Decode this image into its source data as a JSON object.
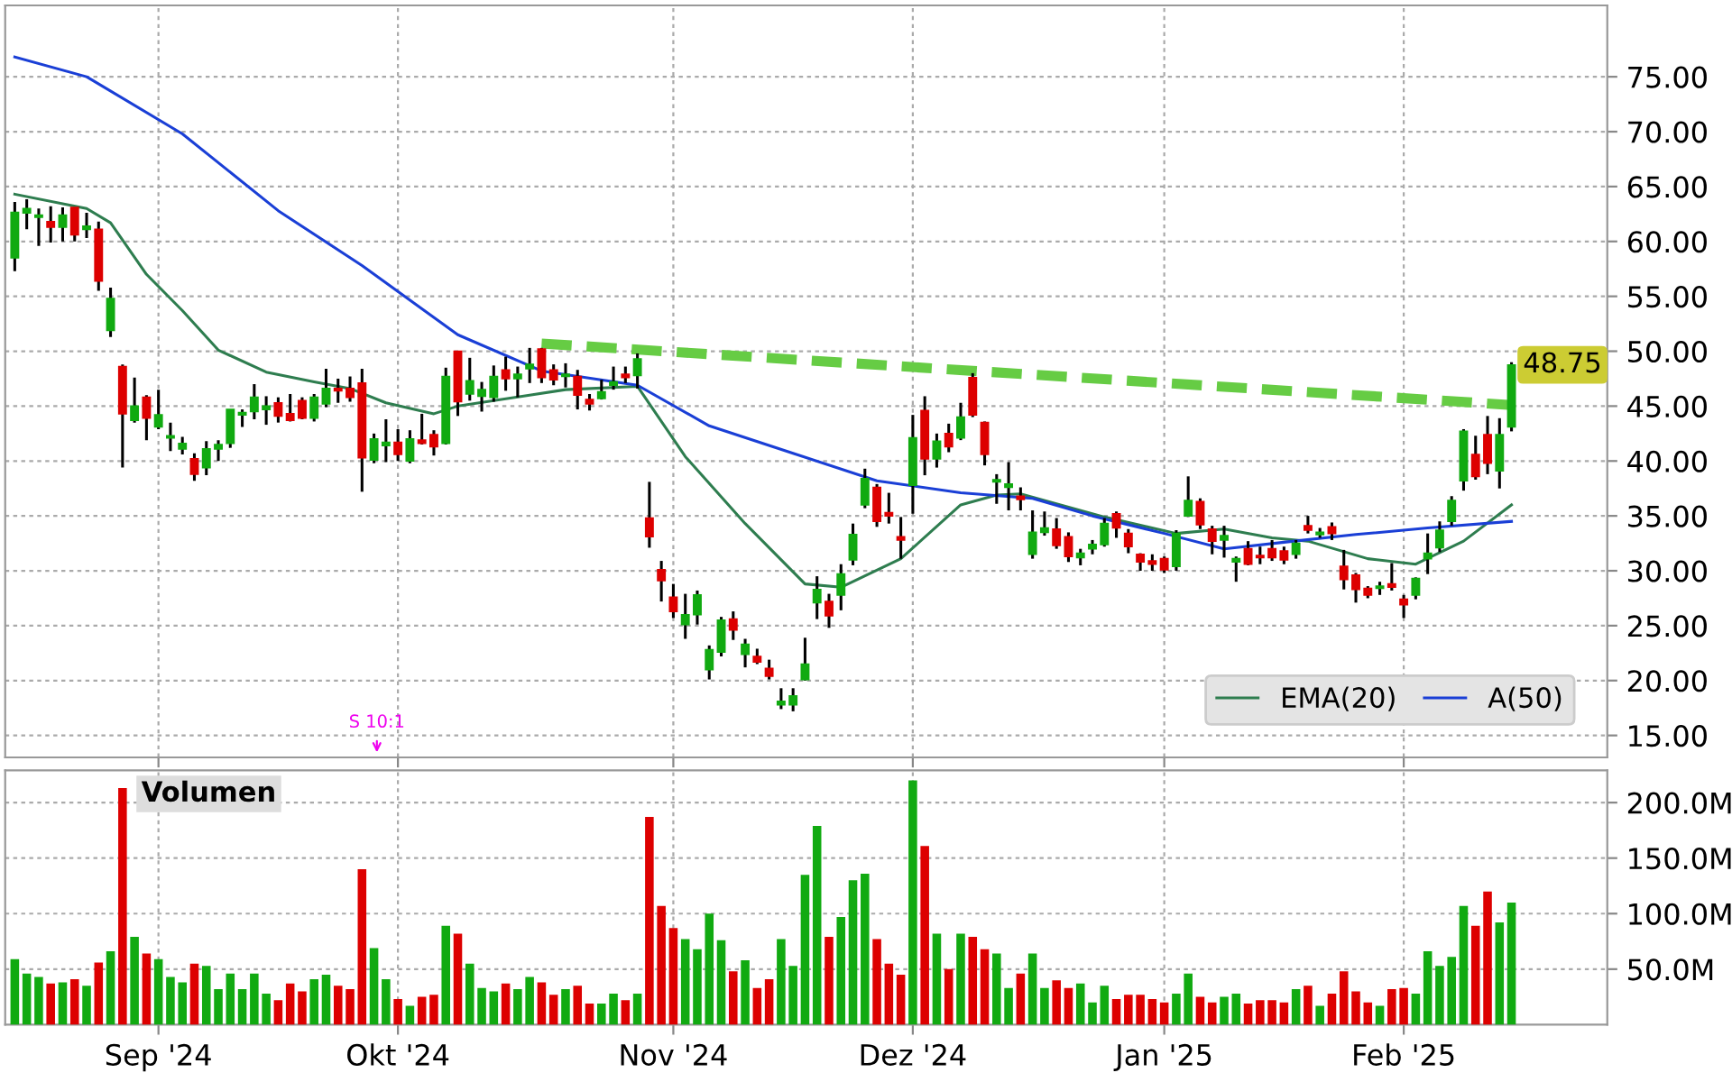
{
  "chart_data": [
    {
      "type": "candlestick",
      "categories": [
        null,
        null,
        null,
        null,
        null,
        null,
        null,
        null,
        null,
        null,
        null,
        null,
        null,
        null,
        null,
        null,
        null,
        null,
        null,
        null,
        null,
        null,
        null,
        null,
        null,
        null,
        null,
        null,
        null,
        null,
        null,
        null,
        null,
        null,
        null,
        null,
        null,
        null,
        null,
        null,
        null,
        null,
        null,
        null,
        null,
        null,
        null,
        null,
        null,
        null,
        null,
        null,
        null,
        null,
        null,
        null,
        null,
        null,
        null,
        null,
        null,
        null,
        null,
        null,
        null,
        null,
        null,
        null,
        null,
        null,
        null,
        null,
        null,
        null,
        null,
        null,
        null,
        null,
        null,
        null,
        null,
        null,
        null,
        null,
        null,
        null,
        null,
        null,
        null,
        null,
        null,
        null,
        null,
        null,
        null,
        null,
        null,
        null,
        null,
        null,
        null,
        null,
        null,
        null,
        null,
        null,
        null,
        null,
        null,
        null,
        null,
        null,
        null,
        null,
        null,
        null,
        null,
        null,
        null,
        null,
        null,
        null,
        null,
        null,
        null,
        null
      ],
      "ohlc": [
        [
          58.5,
          63.6,
          57.3,
          62.65
        ],
        [
          62.6,
          63.85,
          61.1,
          63.0
        ],
        [
          62.2,
          63.0,
          59.6,
          62.4
        ],
        [
          61.8,
          63.2,
          59.9,
          61.3
        ],
        [
          61.3,
          63.1,
          60.0,
          62.4
        ],
        [
          63.1,
          63.1,
          60.0,
          60.6
        ],
        [
          61.1,
          62.6,
          60.3,
          61.4
        ],
        [
          61.1,
          61.8,
          55.5,
          56.4
        ],
        [
          51.9,
          55.8,
          51.3,
          54.8
        ],
        [
          48.6,
          48.8,
          39.4,
          44.3
        ],
        [
          43.7,
          47.6,
          43.5,
          45.0
        ],
        [
          45.8,
          46.0,
          41.9,
          43.9
        ],
        [
          43.1,
          46.5,
          42.9,
          44.2
        ],
        [
          42.1,
          43.5,
          40.9,
          42.3
        ],
        [
          41.1,
          42.2,
          40.6,
          41.6
        ],
        [
          40.2,
          40.7,
          38.2,
          38.8
        ],
        [
          39.4,
          41.8,
          38.7,
          41.1
        ],
        [
          41.1,
          41.9,
          40.0,
          41.5
        ],
        [
          41.6,
          44.7,
          41.2,
          44.7
        ],
        [
          44.2,
          44.7,
          43.1,
          44.4
        ],
        [
          44.5,
          47.0,
          43.8,
          45.8
        ],
        [
          44.7,
          45.9,
          43.3,
          45.0
        ],
        [
          45.3,
          45.8,
          43.5,
          44.1
        ],
        [
          44.3,
          46.1,
          43.6,
          43.7
        ],
        [
          45.5,
          45.8,
          43.8,
          43.9
        ],
        [
          43.9,
          46.1,
          43.6,
          45.8
        ],
        [
          45.2,
          48.4,
          44.9,
          46.6
        ],
        [
          46.6,
          47.5,
          45.3,
          46.4
        ],
        [
          46.6,
          47.7,
          45.4,
          45.8
        ],
        [
          47.1,
          48.4,
          37.2,
          40.3
        ],
        [
          40.1,
          42.5,
          39.8,
          42.0
        ],
        [
          41.4,
          43.8,
          39.9,
          41.7
        ],
        [
          41.7,
          42.9,
          40.0,
          40.6
        ],
        [
          40.0,
          42.8,
          39.8,
          42.0
        ],
        [
          41.9,
          44.3,
          41.5,
          41.6
        ],
        [
          42.4,
          42.8,
          40.5,
          41.3
        ],
        [
          41.6,
          48.5,
          41.5,
          47.7
        ],
        [
          50.0,
          50.0,
          44.1,
          45.4
        ],
        [
          46.1,
          49.4,
          45.5,
          47.3
        ],
        [
          45.9,
          47.2,
          44.5,
          46.5
        ],
        [
          45.8,
          48.7,
          45.4,
          47.7
        ],
        [
          48.3,
          49.5,
          46.4,
          47.5
        ],
        [
          47.5,
          48.6,
          45.8,
          47.9
        ],
        [
          48.4,
          50.3,
          47.1,
          48.8
        ],
        [
          50.2,
          50.3,
          47.1,
          47.6
        ],
        [
          48.3,
          48.8,
          46.9,
          47.4
        ],
        [
          47.7,
          48.9,
          46.7,
          47.9
        ],
        [
          47.7,
          48.3,
          44.7,
          46.0
        ],
        [
          45.6,
          46.1,
          44.6,
          45.2
        ],
        [
          45.7,
          47.4,
          45.6,
          46.3
        ],
        [
          46.9,
          48.6,
          46.5,
          47.2
        ],
        [
          47.9,
          48.6,
          47.1,
          47.6
        ],
        [
          47.8,
          49.8,
          46.6,
          49.3
        ],
        [
          34.8,
          38.1,
          32.1,
          33.1
        ],
        [
          30.1,
          30.9,
          27.2,
          29.1
        ],
        [
          27.6,
          28.8,
          25.7,
          26.3
        ],
        [
          25.1,
          27.9,
          23.8,
          26.0
        ],
        [
          26.0,
          28.2,
          25.1,
          27.8
        ],
        [
          21.0,
          23.2,
          20.1,
          22.8
        ],
        [
          22.6,
          25.8,
          22.2,
          25.5
        ],
        [
          25.6,
          26.3,
          23.7,
          24.6
        ],
        [
          22.4,
          23.8,
          21.2,
          23.3
        ],
        [
          22.2,
          22.9,
          21.5,
          21.7
        ],
        [
          21.1,
          21.9,
          20.1,
          20.4
        ],
        [
          17.8,
          19.3,
          17.4,
          18.1
        ],
        [
          17.8,
          19.3,
          17.2,
          18.6
        ],
        [
          20.1,
          23.9,
          20.0,
          21.5
        ],
        [
          27.1,
          29.5,
          25.6,
          28.3
        ],
        [
          27.2,
          27.9,
          24.8,
          25.9
        ],
        [
          27.8,
          30.6,
          26.4,
          29.7
        ],
        [
          31.0,
          34.3,
          30.5,
          33.3
        ],
        [
          36.0,
          39.3,
          35.7,
          38.4
        ],
        [
          37.6,
          37.9,
          34.0,
          34.5
        ],
        [
          35.3,
          37.1,
          34.3,
          35.0
        ],
        [
          33.1,
          34.9,
          31.1,
          32.8
        ],
        [
          37.8,
          44.2,
          35.2,
          42.1
        ],
        [
          44.6,
          45.9,
          38.7,
          40.2
        ],
        [
          40.2,
          42.5,
          39.4,
          41.8
        ],
        [
          42.5,
          43.4,
          40.8,
          41.3
        ],
        [
          42.1,
          45.3,
          41.9,
          44.0
        ],
        [
          47.6,
          48.0,
          44.0,
          44.2
        ],
        [
          43.5,
          43.6,
          39.6,
          40.6
        ],
        [
          38.1,
          38.8,
          36.1,
          38.3
        ],
        [
          37.6,
          39.9,
          35.5,
          37.9
        ],
        [
          36.8,
          37.6,
          35.5,
          36.5
        ],
        [
          31.5,
          35.5,
          31.1,
          33.5
        ],
        [
          33.5,
          35.4,
          33.2,
          33.9
        ],
        [
          33.8,
          34.8,
          32.0,
          32.3
        ],
        [
          33.1,
          33.5,
          30.8,
          31.3
        ],
        [
          31.2,
          32.0,
          30.5,
          31.6
        ],
        [
          32.0,
          32.8,
          31.5,
          32.4
        ],
        [
          32.4,
          34.8,
          32.2,
          34.3
        ],
        [
          35.2,
          35.4,
          33.0,
          33.9
        ],
        [
          33.4,
          33.8,
          31.6,
          32.2
        ],
        [
          31.5,
          31.6,
          30.0,
          30.8
        ],
        [
          30.9,
          31.5,
          30.0,
          30.6
        ],
        [
          31.1,
          31.3,
          29.8,
          30.1
        ],
        [
          30.4,
          33.7,
          30.0,
          33.4
        ],
        [
          35.0,
          38.6,
          34.9,
          36.4
        ],
        [
          36.3,
          36.6,
          33.8,
          34.2
        ],
        [
          33.8,
          34.1,
          31.5,
          32.7
        ],
        [
          32.8,
          34.1,
          31.2,
          33.2
        ],
        [
          30.8,
          31.3,
          29.0,
          31.1
        ],
        [
          32.0,
          32.7,
          30.5,
          30.6
        ],
        [
          31.4,
          32.2,
          30.6,
          31.2
        ],
        [
          32.0,
          32.8,
          30.9,
          31.2
        ],
        [
          31.8,
          32.2,
          30.6,
          31.0
        ],
        [
          31.5,
          32.8,
          31.1,
          32.5
        ],
        [
          34.1,
          35.0,
          33.4,
          33.7
        ],
        [
          33.3,
          33.9,
          33.0,
          33.5
        ],
        [
          34.0,
          34.4,
          32.8,
          33.4
        ],
        [
          30.4,
          31.9,
          28.3,
          29.2
        ],
        [
          29.6,
          29.8,
          27.1,
          28.3
        ],
        [
          28.4,
          28.6,
          27.5,
          27.8
        ],
        [
          28.4,
          29.0,
          27.8,
          28.6
        ],
        [
          28.8,
          30.7,
          28.2,
          28.5
        ],
        [
          27.4,
          27.8,
          25.7,
          26.9
        ],
        [
          27.8,
          29.4,
          27.4,
          29.3
        ],
        [
          31.1,
          33.4,
          29.7,
          31.6
        ],
        [
          32.1,
          34.5,
          31.7,
          33.7
        ],
        [
          34.5,
          36.8,
          34.1,
          36.4
        ],
        [
          38.2,
          42.9,
          37.3,
          42.7
        ],
        [
          40.6,
          42.3,
          38.3,
          38.6
        ],
        [
          42.4,
          44.1,
          38.8,
          39.8
        ],
        [
          39.1,
          43.9,
          37.5,
          42.4
        ],
        [
          43.1,
          49.0,
          42.7,
          48.75
        ]
      ],
      "colors": [
        "#11aa11",
        "#11aa11",
        "#11aa11",
        "#dd0000",
        "#11aa11",
        "#dd0000",
        "#11aa11",
        "#dd0000",
        "#11aa11",
        "#dd0000",
        "#11aa11",
        "#dd0000",
        "#11aa11",
        "#11aa11",
        "#11aa11",
        "#dd0000",
        "#11aa11",
        "#11aa11",
        "#11aa11",
        "#11aa11",
        "#11aa11",
        "#11aa11",
        "#dd0000",
        "#dd0000",
        "#dd0000",
        "#11aa11",
        "#11aa11",
        "#dd0000",
        "#dd0000",
        "#dd0000",
        "#11aa11",
        "#11aa11",
        "#dd0000",
        "#11aa11",
        "#dd0000",
        "#dd0000",
        "#11aa11",
        "#dd0000",
        "#11aa11",
        "#11aa11",
        "#11aa11",
        "#dd0000",
        "#11aa11",
        "#11aa11",
        "#dd0000",
        "#dd0000",
        "#11aa11",
        "#dd0000",
        "#dd0000",
        "#11aa11",
        "#11aa11",
        "#dd0000",
        "#11aa11",
        "#dd0000",
        "#dd0000",
        "#dd0000",
        "#11aa11",
        "#11aa11",
        "#11aa11",
        "#11aa11",
        "#dd0000",
        "#11aa11",
        "#dd0000",
        "#dd0000",
        "#11aa11",
        "#11aa11",
        "#11aa11",
        "#11aa11",
        "#dd0000",
        "#11aa11",
        "#11aa11",
        "#11aa11",
        "#dd0000",
        "#dd0000",
        "#dd0000",
        "#11aa11",
        "#dd0000",
        "#11aa11",
        "#dd0000",
        "#11aa11",
        "#dd0000",
        "#dd0000",
        "#11aa11",
        "#11aa11",
        "#dd0000",
        "#11aa11",
        "#11aa11",
        "#dd0000",
        "#dd0000",
        "#11aa11",
        "#11aa11",
        "#11aa11",
        "#dd0000",
        "#dd0000",
        "#dd0000",
        "#dd0000",
        "#dd0000",
        "#11aa11",
        "#11aa11",
        "#dd0000",
        "#dd0000",
        "#11aa11",
        "#11aa11",
        "#dd0000",
        "#dd0000",
        "#dd0000",
        "#dd0000",
        "#11aa11",
        "#dd0000",
        "#11aa11",
        "#dd0000",
        "#dd0000",
        "#dd0000",
        "#dd0000",
        "#11aa11",
        "#dd0000",
        "#dd0000",
        "#11aa11",
        "#11aa11",
        "#11aa11",
        "#11aa11",
        "#11aa11",
        "#dd0000",
        "#dd0000",
        "#11aa11",
        "#11aa11"
      ],
      "series": [
        {
          "name": "EMA(20)",
          "type": "line",
          "color": "#2e7d4f",
          "values": [
            64.3,
            null,
            null,
            null,
            null,
            null,
            63.0,
            null,
            61.7,
            null,
            null,
            57.0,
            null,
            null,
            53.7,
            null,
            null,
            50.1,
            null,
            null,
            null,
            48.1,
            null,
            null,
            null,
            47.2,
            null,
            null,
            46.6,
            null,
            null,
            45.3,
            null,
            null,
            null,
            44.3,
            null,
            45.0,
            null,
            null,
            null,
            null,
            null,
            46.0,
            null,
            null,
            46.5,
            null,
            null,
            null,
            null,
            null,
            46.8,
            null,
            null,
            null,
            40.4,
            null,
            null,
            null,
            null,
            34.3,
            null,
            null,
            null,
            null,
            28.8,
            null,
            null,
            28.5,
            null,
            null,
            null,
            null,
            31.1,
            null,
            null,
            null,
            null,
            36.0,
            null,
            null,
            36.9,
            null,
            37.0,
            null,
            null,
            null,
            null,
            null,
            null,
            34.9,
            null,
            null,
            null,
            null,
            null,
            33.4,
            null,
            null,
            null,
            33.8,
            null,
            null,
            null,
            33.0,
            null,
            null,
            32.7,
            null,
            null,
            null,
            null,
            31.1,
            null,
            null,
            null,
            30.6,
            null,
            null,
            null,
            32.7,
            null,
            null,
            null,
            36.0
          ]
        },
        {
          "name": "A(50)",
          "type": "line",
          "color": "#1a3fd6",
          "values": [
            76.8,
            null,
            null,
            null,
            null,
            null,
            75.0,
            null,
            null,
            null,
            null,
            null,
            null,
            null,
            69.8,
            null,
            null,
            null,
            null,
            null,
            null,
            null,
            62.8,
            null,
            null,
            null,
            null,
            null,
            null,
            57.8,
            null,
            null,
            null,
            null,
            null,
            null,
            null,
            51.5,
            null,
            null,
            null,
            null,
            null,
            null,
            48.2,
            null,
            null,
            null,
            null,
            null,
            null,
            null,
            46.9,
            null,
            null,
            null,
            null,
            null,
            43.2,
            null,
            null,
            null,
            null,
            null,
            null,
            40.7,
            null,
            null,
            null,
            null,
            null,
            null,
            38.2,
            null,
            null,
            null,
            null,
            null,
            null,
            37.1,
            null,
            null,
            null,
            null,
            null,
            36.6,
            null,
            null,
            null,
            null,
            35.0,
            null,
            null,
            null,
            null,
            null,
            33.4,
            null,
            null,
            null,
            null,
            32.0,
            null,
            null,
            null,
            null,
            32.6,
            null,
            null,
            null,
            null,
            null,
            33.3,
            null,
            null,
            null,
            null,
            null,
            33.9,
            null,
            null,
            null,
            null,
            null,
            null,
            34.5
          ]
        },
        {
          "type": "line",
          "color": "#66cc44",
          "line_style": "dashed",
          "values": [
            null,
            null,
            null,
            null,
            null,
            null,
            null,
            null,
            null,
            null,
            null,
            null,
            null,
            null,
            null,
            null,
            null,
            null,
            null,
            null,
            null,
            null,
            null,
            null,
            null,
            null,
            null,
            null,
            null,
            null,
            null,
            null,
            null,
            null,
            null,
            null,
            null,
            null,
            null,
            null,
            null,
            null,
            null,
            null,
            50.7,
            null,
            null,
            null,
            null,
            null,
            null,
            null,
            null,
            null,
            null,
            null,
            null,
            null,
            null,
            null,
            null,
            null,
            null,
            null,
            null,
            null,
            null,
            null,
            null,
            null,
            null,
            null,
            null,
            null,
            null,
            null,
            null,
            null,
            null,
            null,
            null,
            null,
            null,
            null,
            null,
            null,
            null,
            null,
            null,
            null,
            null,
            null,
            null,
            null,
            null,
            null,
            null,
            null,
            null,
            null,
            null,
            null,
            null,
            null,
            null,
            null,
            null,
            null,
            null,
            null,
            null,
            null,
            null,
            null,
            null,
            null,
            null,
            null,
            null,
            null,
            null,
            null,
            null,
            null,
            null,
            45.1
          ]
        }
      ],
      "ylim": [
        13,
        81.5
      ],
      "yticks": [
        {
          "value": 15,
          "label": "15.00"
        },
        {
          "value": 20,
          "label": "20.00"
        },
        {
          "value": 25,
          "label": "25.00"
        },
        {
          "value": 30,
          "label": "30.00"
        },
        {
          "value": 35,
          "label": "35.00"
        },
        {
          "value": 40,
          "label": "40.00"
        },
        {
          "value": 45,
          "label": "45.00"
        },
        {
          "value": 50,
          "label": "50.00"
        },
        {
          "value": 55,
          "label": "55.00"
        },
        {
          "value": 60,
          "label": "60.00"
        },
        {
          "value": 65,
          "label": "65.00"
        },
        {
          "value": 70,
          "label": "70.00"
        },
        {
          "value": 75,
          "label": "75.00"
        }
      ],
      "tick_labels": "y",
      "grid": true,
      "legend": "bottom right",
      "annotations": [
        "S 10:1",
        "48.75"
      ]
    },
    {
      "type": "bar",
      "title": "Volumen",
      "categories": [
        null,
        null,
        null,
        null,
        null,
        null,
        null,
        null,
        null,
        null,
        null,
        null,
        "Sep '24",
        null,
        null,
        null,
        null,
        null,
        null,
        null,
        null,
        null,
        null,
        null,
        null,
        null,
        null,
        null,
        null,
        null,
        null,
        null,
        "Okt '24",
        null,
        null,
        null,
        null,
        null,
        null,
        null,
        null,
        null,
        null,
        null,
        null,
        null,
        null,
        null,
        null,
        null,
        null,
        null,
        null,
        null,
        null,
        "Nov '24",
        null,
        null,
        null,
        null,
        null,
        null,
        null,
        null,
        null,
        null,
        null,
        null,
        null,
        null,
        null,
        null,
        null,
        null,
        null,
        "Dez '24",
        null,
        null,
        null,
        null,
        null,
        null,
        null,
        null,
        null,
        null,
        null,
        null,
        null,
        null,
        null,
        null,
        null,
        null,
        null,
        null,
        "Jan '25",
        null,
        null,
        null,
        null,
        null,
        null,
        null,
        null,
        null,
        null,
        null,
        null,
        null,
        null,
        null,
        null,
        null,
        null,
        null,
        "Feb '25",
        null,
        null,
        null,
        null,
        null,
        null,
        null,
        null,
        null
      ],
      "values": [
        59,
        46,
        43,
        37,
        38,
        41,
        35,
        56,
        66,
        213,
        79,
        64,
        59,
        43,
        38,
        55,
        53,
        32,
        46,
        32,
        46,
        28,
        22,
        37,
        30,
        41,
        45,
        35,
        32,
        140,
        69,
        41,
        23,
        17,
        25,
        27,
        89,
        82,
        55,
        33,
        30,
        37,
        32,
        43,
        38,
        27,
        32,
        35,
        19,
        19,
        28,
        22,
        28,
        187,
        107,
        87,
        77,
        68,
        100,
        76,
        48,
        58,
        33,
        41,
        77,
        53,
        135,
        179,
        79,
        97,
        130,
        136,
        77,
        55,
        45,
        220,
        161,
        82,
        50,
        82,
        79,
        68,
        64,
        33,
        46,
        64,
        33,
        40,
        33,
        37,
        20,
        35,
        23,
        27,
        27,
        23,
        20,
        28,
        46,
        25,
        20,
        25,
        28,
        19,
        22,
        22,
        20,
        32,
        35,
        17,
        28,
        48,
        30,
        20,
        17,
        32,
        33,
        28,
        66,
        53,
        61,
        107,
        89,
        120,
        92,
        110
      ],
      "colors": [
        "#11aa11",
        "#11aa11",
        "#11aa11",
        "#dd0000",
        "#11aa11",
        "#dd0000",
        "#11aa11",
        "#dd0000",
        "#11aa11",
        "#dd0000",
        "#11aa11",
        "#dd0000",
        "#11aa11",
        "#11aa11",
        "#11aa11",
        "#dd0000",
        "#11aa11",
        "#11aa11",
        "#11aa11",
        "#11aa11",
        "#11aa11",
        "#11aa11",
        "#dd0000",
        "#dd0000",
        "#dd0000",
        "#11aa11",
        "#11aa11",
        "#dd0000",
        "#dd0000",
        "#dd0000",
        "#11aa11",
        "#11aa11",
        "#dd0000",
        "#11aa11",
        "#dd0000",
        "#dd0000",
        "#11aa11",
        "#dd0000",
        "#11aa11",
        "#11aa11",
        "#11aa11",
        "#dd0000",
        "#11aa11",
        "#11aa11",
        "#dd0000",
        "#dd0000",
        "#11aa11",
        "#dd0000",
        "#dd0000",
        "#11aa11",
        "#11aa11",
        "#dd0000",
        "#11aa11",
        "#dd0000",
        "#dd0000",
        "#dd0000",
        "#11aa11",
        "#11aa11",
        "#11aa11",
        "#11aa11",
        "#dd0000",
        "#11aa11",
        "#dd0000",
        "#dd0000",
        "#11aa11",
        "#11aa11",
        "#11aa11",
        "#11aa11",
        "#dd0000",
        "#11aa11",
        "#11aa11",
        "#11aa11",
        "#dd0000",
        "#dd0000",
        "#dd0000",
        "#11aa11",
        "#dd0000",
        "#11aa11",
        "#dd0000",
        "#11aa11",
        "#dd0000",
        "#dd0000",
        "#11aa11",
        "#11aa11",
        "#dd0000",
        "#11aa11",
        "#11aa11",
        "#dd0000",
        "#dd0000",
        "#11aa11",
        "#11aa11",
        "#11aa11",
        "#dd0000",
        "#dd0000",
        "#dd0000",
        "#dd0000",
        "#dd0000",
        "#11aa11",
        "#11aa11",
        "#dd0000",
        "#dd0000",
        "#11aa11",
        "#11aa11",
        "#dd0000",
        "#dd0000",
        "#dd0000",
        "#dd0000",
        "#11aa11",
        "#dd0000",
        "#11aa11",
        "#dd0000",
        "#dd0000",
        "#dd0000",
        "#dd0000",
        "#11aa11",
        "#dd0000",
        "#dd0000",
        "#11aa11",
        "#11aa11",
        "#11aa11",
        "#11aa11",
        "#11aa11",
        "#dd0000",
        "#dd0000",
        "#11aa11",
        "#11aa11"
      ],
      "ylim": [
        0,
        229
      ],
      "yticks": [
        {
          "value": 50,
          "label": "50.0M"
        },
        {
          "value": 100,
          "label": "100.0M"
        },
        {
          "value": 150,
          "label": "150.0M"
        },
        {
          "value": 200,
          "label": "200.0M"
        }
      ],
      "grid": true
    }
  ]
}
